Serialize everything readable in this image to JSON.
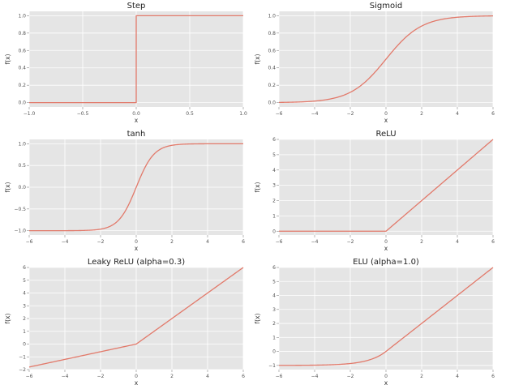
{
  "accent_color": "#e2796a",
  "background_color": "#e5e5e5",
  "chart_data": [
    {
      "id": "step",
      "type": "line",
      "title": "Step",
      "xlabel": "x",
      "ylabel": "f(x)",
      "xlim": [
        -1.0,
        1.0
      ],
      "ylim": [
        -0.05,
        1.05
      ],
      "xticks": [
        -1.0,
        -0.5,
        0.0,
        0.5,
        1.0
      ],
      "xtick_labels": [
        "−1.0",
        "−0.5",
        "0.0",
        "0.5",
        "1.0"
      ],
      "yticks": [
        0.0,
        0.2,
        0.4,
        0.6,
        0.8,
        1.0
      ],
      "ytick_labels": [
        "0.0",
        "0.2",
        "0.4",
        "0.6",
        "0.8",
        "1.0"
      ],
      "grid": true,
      "series": [
        {
          "function": "step",
          "x": [
            -1.0,
            -0.02,
            0.0,
            0.0,
            1.0
          ],
          "y": [
            0.0,
            0.0,
            0.0,
            1.0,
            1.0
          ]
        }
      ]
    },
    {
      "id": "sigmoid",
      "type": "line",
      "title": "Sigmoid",
      "xlabel": "x",
      "ylabel": "f(x)",
      "xlim": [
        -6,
        6
      ],
      "ylim": [
        -0.05,
        1.05
      ],
      "xticks": [
        -6,
        -4,
        -2,
        0,
        2,
        4,
        6
      ],
      "xtick_labels": [
        "−6",
        "−4",
        "−2",
        "0",
        "2",
        "4",
        "6"
      ],
      "yticks": [
        0.0,
        0.2,
        0.4,
        0.6,
        0.8,
        1.0
      ],
      "ytick_labels": [
        "0.0",
        "0.2",
        "0.4",
        "0.6",
        "0.8",
        "1.0"
      ],
      "grid": true,
      "series": [
        {
          "function": "sigmoid",
          "x": [
            -6,
            -5,
            -4,
            -3,
            -2,
            -1,
            0,
            1,
            2,
            3,
            4,
            5,
            6
          ],
          "y": [
            0.002,
            0.007,
            0.018,
            0.047,
            0.119,
            0.269,
            0.5,
            0.731,
            0.881,
            0.953,
            0.982,
            0.993,
            0.998
          ]
        }
      ]
    },
    {
      "id": "tanh",
      "type": "line",
      "title": "tanh",
      "xlabel": "x",
      "ylabel": "f(x)",
      "xlim": [
        -6,
        6
      ],
      "ylim": [
        -1.1,
        1.1
      ],
      "xticks": [
        -6,
        -4,
        -2,
        0,
        2,
        4,
        6
      ],
      "xtick_labels": [
        "−6",
        "−4",
        "−2",
        "0",
        "2",
        "4",
        "6"
      ],
      "yticks": [
        -1.0,
        -0.5,
        0.0,
        0.5,
        1.0
      ],
      "ytick_labels": [
        "−1.0",
        "−0.5",
        "0.0",
        "0.5",
        "1.0"
      ],
      "grid": true,
      "series": [
        {
          "function": "tanh",
          "x": [
            -6,
            -5,
            -4,
            -3,
            -2,
            -1,
            0,
            1,
            2,
            3,
            4,
            5,
            6
          ],
          "y": [
            -1.0,
            -1.0,
            -0.999,
            -0.995,
            -0.964,
            -0.762,
            0.0,
            0.762,
            0.964,
            0.995,
            0.999,
            1.0,
            1.0
          ]
        }
      ]
    },
    {
      "id": "relu",
      "type": "line",
      "title": "ReLU",
      "xlabel": "x",
      "ylabel": "f(x)",
      "xlim": [
        -6,
        6
      ],
      "ylim": [
        -0.25,
        6
      ],
      "xticks": [
        -6,
        -4,
        -2,
        0,
        2,
        4,
        6
      ],
      "xtick_labels": [
        "−6",
        "−4",
        "−2",
        "0",
        "2",
        "4",
        "6"
      ],
      "yticks": [
        0,
        1,
        2,
        3,
        4,
        5,
        6
      ],
      "ytick_labels": [
        "0",
        "1",
        "2",
        "3",
        "4",
        "5",
        "6"
      ],
      "grid": true,
      "series": [
        {
          "function": "relu",
          "x": [
            -6,
            0,
            6
          ],
          "y": [
            0,
            0,
            6
          ]
        }
      ]
    },
    {
      "id": "leaky-relu",
      "type": "line",
      "title": "Leaky ReLU (alpha=0.3)",
      "xlabel": "x",
      "ylabel": "f(x)",
      "xlim": [
        -6,
        6
      ],
      "ylim": [
        -2,
        6
      ],
      "xticks": [
        -6,
        -4,
        -2,
        0,
        2,
        4,
        6
      ],
      "xtick_labels": [
        "−6",
        "−4",
        "−2",
        "0",
        "2",
        "4",
        "6"
      ],
      "yticks": [
        -2,
        -1,
        0,
        1,
        2,
        3,
        4,
        5,
        6
      ],
      "ytick_labels": [
        "−2",
        "−1",
        "0",
        "1",
        "2",
        "3",
        "4",
        "5",
        "6"
      ],
      "grid": true,
      "series": [
        {
          "function": "leaky_relu",
          "x": [
            -6,
            0,
            6
          ],
          "y": [
            -1.8,
            0,
            6
          ]
        }
      ]
    },
    {
      "id": "elu",
      "type": "line",
      "title": "ELU (alpha=1.0)",
      "xlabel": "x",
      "ylabel": "f(x)",
      "xlim": [
        -6,
        6
      ],
      "ylim": [
        -1.3,
        6
      ],
      "xticks": [
        -6,
        -4,
        -2,
        0,
        2,
        4,
        6
      ],
      "xtick_labels": [
        "−6",
        "−4",
        "−2",
        "0",
        "2",
        "4",
        "6"
      ],
      "yticks": [
        -1,
        0,
        1,
        2,
        3,
        4,
        5,
        6
      ],
      "ytick_labels": [
        "−1",
        "0",
        "1",
        "2",
        "3",
        "4",
        "5",
        "6"
      ],
      "grid": true,
      "series": [
        {
          "function": "elu",
          "x": [
            -6,
            -5,
            -4,
            -3,
            -2,
            -1,
            0,
            6
          ],
          "y": [
            -0.998,
            -0.993,
            -0.982,
            -0.95,
            -0.865,
            -0.632,
            0,
            6
          ]
        }
      ]
    }
  ]
}
